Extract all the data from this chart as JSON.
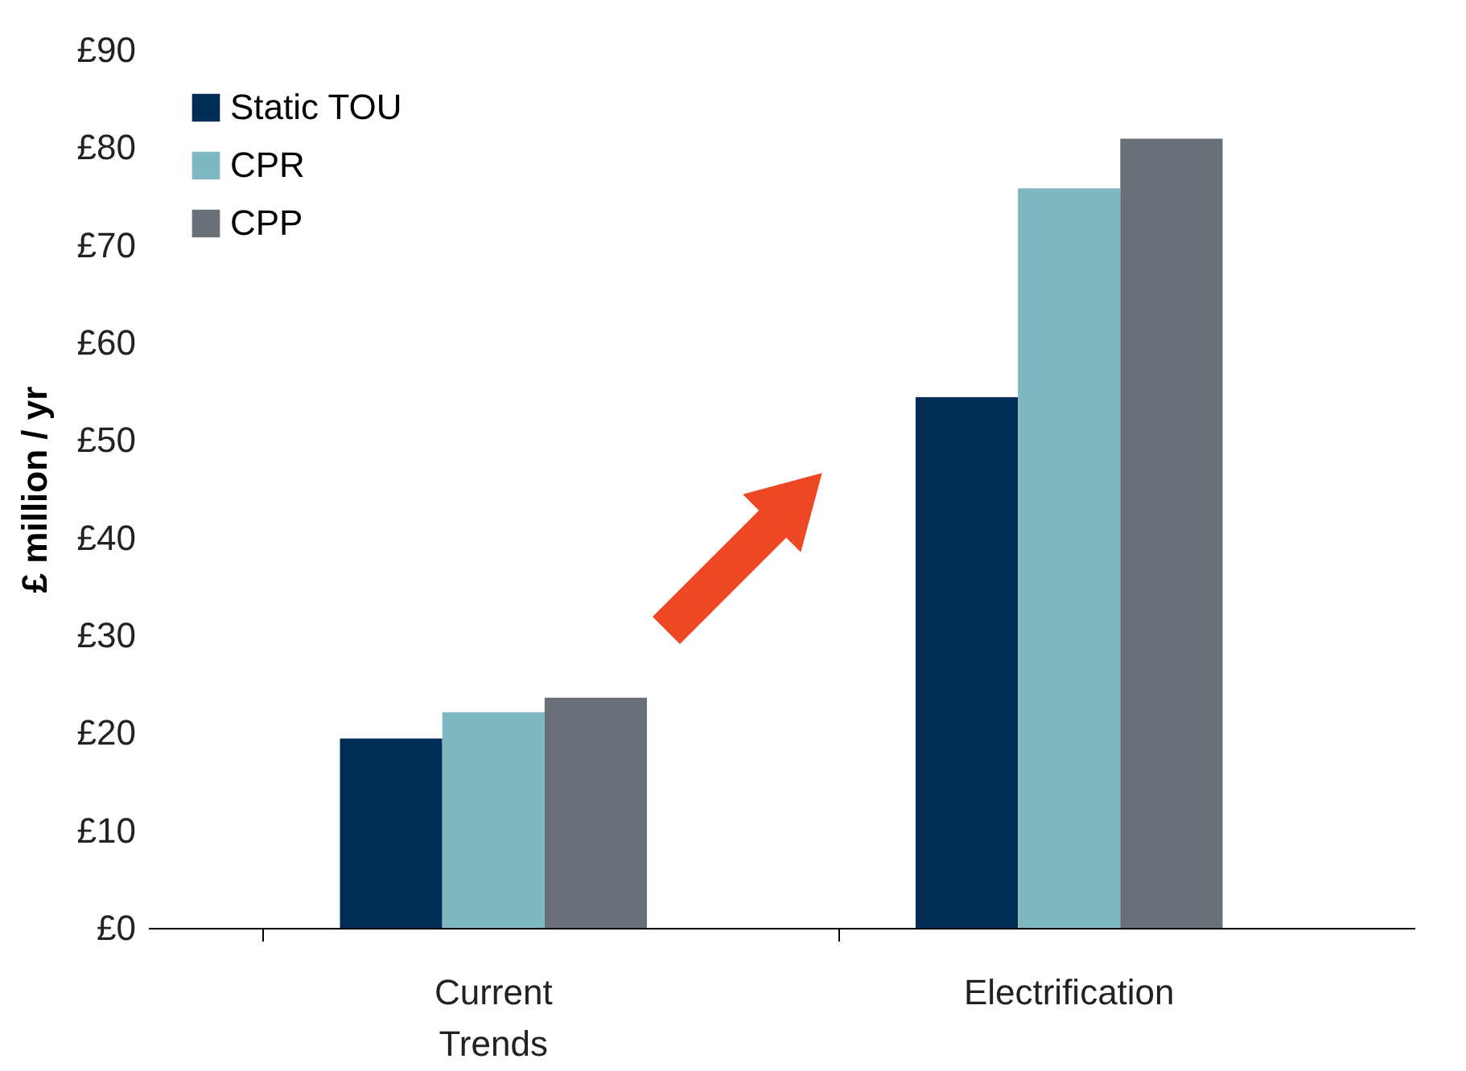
{
  "chart_data": {
    "type": "bar",
    "ylabel": "£ million / yr",
    "categories": [
      "Current Trends",
      "Electrification"
    ],
    "series": [
      {
        "name": "Static TOU",
        "color": "#002d56",
        "values": [
          19.4,
          54.4
        ]
      },
      {
        "name": "CPR",
        "color": "#7fb8c1",
        "values": [
          22.1,
          75.8
        ]
      },
      {
        "name": "CPP",
        "color": "#6a7078",
        "values": [
          23.6,
          80.9
        ]
      }
    ],
    "ylim": [
      0,
      90
    ],
    "yticks": [
      {
        "value": 0,
        "label": "£0"
      },
      {
        "value": 10,
        "label": "£10"
      },
      {
        "value": 20,
        "label": "£20"
      },
      {
        "value": 30,
        "label": "£30"
      },
      {
        "value": 40,
        "label": "£40"
      },
      {
        "value": 50,
        "label": "£50"
      },
      {
        "value": 60,
        "label": "£60"
      },
      {
        "value": 70,
        "label": "£70"
      },
      {
        "value": 80,
        "label": "£80"
      },
      {
        "value": 90,
        "label": "£90"
      }
    ],
    "grid": false,
    "legend": "top left"
  }
}
